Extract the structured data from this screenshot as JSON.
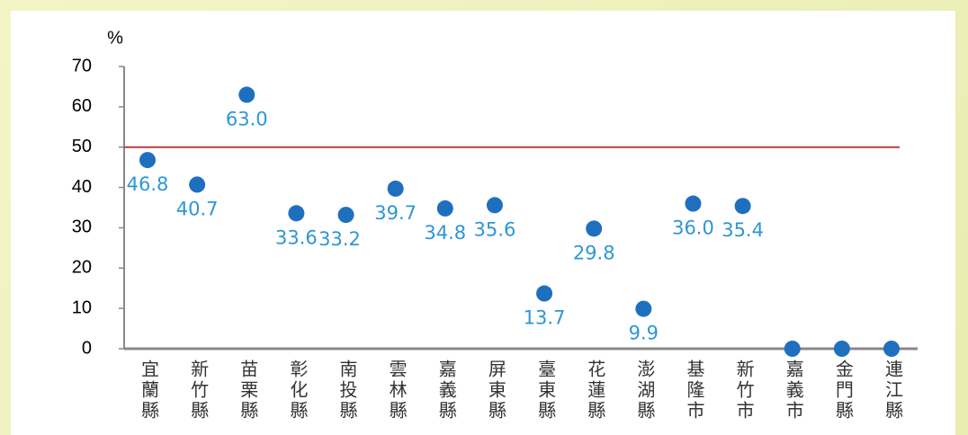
{
  "chart_data": {
    "type": "scatter",
    "y_label": "%",
    "categories": [
      "宜蘭縣",
      "新竹縣",
      "苗栗縣",
      "彰化縣",
      "南投縣",
      "雲林縣",
      "嘉義縣",
      "屏東縣",
      "臺東縣",
      "花蓮縣",
      "澎湖縣",
      "基隆市",
      "新竹市",
      "嘉義市",
      "金門縣",
      "連江縣"
    ],
    "values": [
      46.8,
      40.7,
      63.0,
      33.6,
      33.2,
      39.7,
      34.8,
      35.6,
      13.7,
      29.8,
      9.9,
      36.0,
      35.4,
      0,
      0,
      0
    ],
    "value_labels": [
      "46.8",
      "40.7",
      "63.0",
      "33.6",
      "33.2",
      "39.7",
      "34.8",
      "35.6",
      "13.7",
      "29.8",
      "9.9",
      "36.0",
      "35.4",
      null,
      null,
      null
    ],
    "color": "#1f6fbf",
    "reference_line": 50,
    "reference_color": "#b5403d",
    "ylim": [
      0,
      70
    ],
    "yticks": [
      0,
      10,
      20,
      30,
      40,
      50,
      60,
      70
    ]
  }
}
